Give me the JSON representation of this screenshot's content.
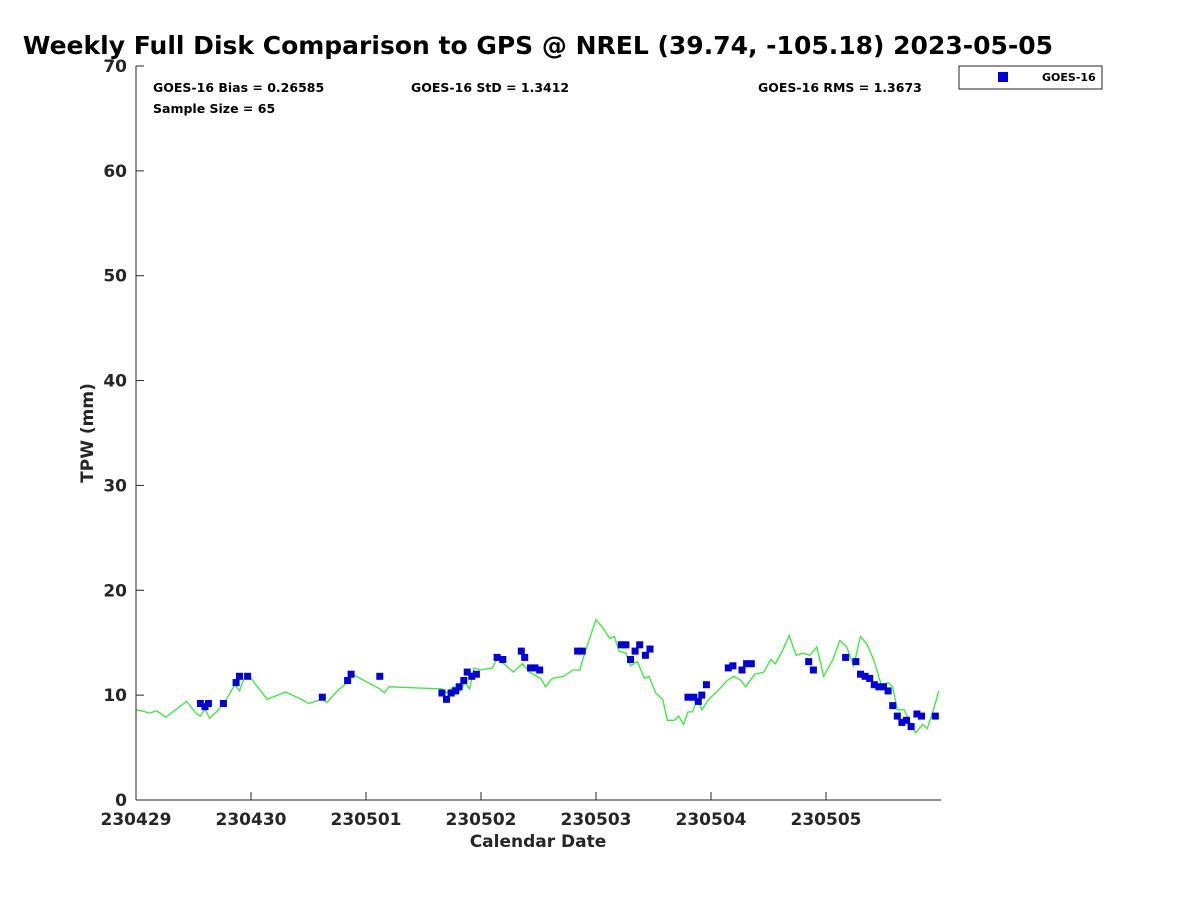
{
  "chart_data": {
    "type": "scatter",
    "title": "Weekly Full Disk Comparison to GPS @ NREL (39.74, -105.18) 2023-05-05",
    "xlabel": "Calendar Date",
    "ylabel": "TPW (mm)",
    "xlim": [
      0,
      7
    ],
    "ylim": [
      0,
      70
    ],
    "x_ticks": [
      {
        "pos": 0,
        "label": "230429"
      },
      {
        "pos": 1,
        "label": "230430"
      },
      {
        "pos": 2,
        "label": "230501"
      },
      {
        "pos": 3,
        "label": "230502"
      },
      {
        "pos": 4,
        "label": "230503"
      },
      {
        "pos": 5,
        "label": "230504"
      },
      {
        "pos": 6,
        "label": "230505"
      }
    ],
    "y_ticks": [
      0,
      10,
      20,
      30,
      40,
      50,
      60,
      70
    ],
    "grid": false,
    "legend": {
      "position": "top-right, outside plot",
      "entries": [
        "GOES-16"
      ]
    },
    "stats": {
      "bias": "GOES-16 Bias = 0.26585",
      "std": "GOES-16 StD = 1.3412",
      "rms": "GOES-16 RMS = 1.3673",
      "sample": "Sample Size = 65"
    },
    "colors": {
      "goes16": "#0000dd",
      "gps": "#33ee33"
    },
    "series": [
      {
        "name": "GOES-16",
        "marker": "square",
        "points": [
          [
            0.56,
            9.2
          ],
          [
            0.6,
            8.9
          ],
          [
            0.63,
            9.2
          ],
          [
            0.76,
            9.2
          ],
          [
            0.87,
            11.2
          ],
          [
            0.9,
            11.8
          ],
          [
            0.97,
            11.8
          ],
          [
            1.62,
            9.8
          ],
          [
            1.84,
            11.4
          ],
          [
            1.87,
            12.0
          ],
          [
            2.12,
            11.8
          ],
          [
            2.66,
            10.2
          ],
          [
            2.7,
            9.6
          ],
          [
            2.74,
            10.2
          ],
          [
            2.78,
            10.4
          ],
          [
            2.81,
            10.8
          ],
          [
            2.85,
            11.4
          ],
          [
            2.88,
            12.2
          ],
          [
            2.92,
            11.8
          ],
          [
            2.96,
            12.0
          ],
          [
            3.14,
            13.6
          ],
          [
            3.19,
            13.4
          ],
          [
            3.35,
            14.2
          ],
          [
            3.38,
            13.6
          ],
          [
            3.43,
            12.6
          ],
          [
            3.47,
            12.6
          ],
          [
            3.51,
            12.4
          ],
          [
            3.84,
            14.2
          ],
          [
            3.88,
            14.2
          ],
          [
            4.22,
            14.8
          ],
          [
            4.26,
            14.8
          ],
          [
            4.3,
            13.4
          ],
          [
            4.34,
            14.2
          ],
          [
            4.38,
            14.8
          ],
          [
            4.43,
            13.8
          ],
          [
            4.47,
            14.4
          ],
          [
            4.8,
            9.8
          ],
          [
            4.85,
            9.8
          ],
          [
            4.89,
            9.4
          ],
          [
            4.92,
            10.0
          ],
          [
            4.96,
            11.0
          ],
          [
            5.15,
            12.6
          ],
          [
            5.19,
            12.8
          ],
          [
            5.27,
            12.4
          ],
          [
            5.31,
            13.0
          ],
          [
            5.35,
            13.0
          ],
          [
            5.85,
            13.2
          ],
          [
            5.89,
            12.4
          ],
          [
            6.17,
            13.6
          ],
          [
            6.26,
            13.2
          ],
          [
            6.3,
            12.0
          ],
          [
            6.34,
            11.8
          ],
          [
            6.38,
            11.6
          ],
          [
            6.42,
            11.0
          ],
          [
            6.46,
            10.8
          ],
          [
            6.5,
            10.8
          ],
          [
            6.54,
            10.4
          ],
          [
            6.58,
            9.0
          ],
          [
            6.62,
            8.0
          ],
          [
            6.66,
            7.4
          ],
          [
            6.7,
            7.6
          ],
          [
            6.74,
            7.0
          ],
          [
            6.79,
            8.2
          ],
          [
            6.83,
            8.0
          ],
          [
            6.95,
            8.0
          ]
        ]
      },
      {
        "name": "GPS",
        "marker": "line",
        "points": [
          [
            0.0,
            8.6
          ],
          [
            0.12,
            8.3
          ],
          [
            0.18,
            8.5
          ],
          [
            0.26,
            7.9
          ],
          [
            0.32,
            8.4
          ],
          [
            0.44,
            9.4
          ],
          [
            0.52,
            8.3
          ],
          [
            0.56,
            8.0
          ],
          [
            0.6,
            8.7
          ],
          [
            0.64,
            7.8
          ],
          [
            0.7,
            8.4
          ],
          [
            0.78,
            9.5
          ],
          [
            0.86,
            11.0
          ],
          [
            0.9,
            10.4
          ],
          [
            0.94,
            11.6
          ],
          [
            1.0,
            11.6
          ],
          [
            1.14,
            9.6
          ],
          [
            1.3,
            10.3
          ],
          [
            1.44,
            9.6
          ],
          [
            1.5,
            9.2
          ],
          [
            1.62,
            9.6
          ],
          [
            1.66,
            9.3
          ],
          [
            1.76,
            10.5
          ],
          [
            1.84,
            11.2
          ],
          [
            1.88,
            12.0
          ],
          [
            2.12,
            10.6
          ],
          [
            2.16,
            10.2
          ],
          [
            2.2,
            10.8
          ],
          [
            2.66,
            10.6
          ],
          [
            2.7,
            10.2
          ],
          [
            2.76,
            10.8
          ],
          [
            2.82,
            10.4
          ],
          [
            2.86,
            11.2
          ],
          [
            2.9,
            10.6
          ],
          [
            2.94,
            12.6
          ],
          [
            3.0,
            12.4
          ],
          [
            3.1,
            12.6
          ],
          [
            3.14,
            13.5
          ],
          [
            3.22,
            12.8
          ],
          [
            3.28,
            12.2
          ],
          [
            3.36,
            13.0
          ],
          [
            3.42,
            12.2
          ],
          [
            3.52,
            11.6
          ],
          [
            3.56,
            10.8
          ],
          [
            3.62,
            11.6
          ],
          [
            3.72,
            11.8
          ],
          [
            3.8,
            12.4
          ],
          [
            3.86,
            12.4
          ],
          [
            3.88,
            13.2
          ],
          [
            3.92,
            14.6
          ],
          [
            4.0,
            17.2
          ],
          [
            4.06,
            16.4
          ],
          [
            4.12,
            15.4
          ],
          [
            4.16,
            15.6
          ],
          [
            4.2,
            14.2
          ],
          [
            4.26,
            14.0
          ],
          [
            4.3,
            12.8
          ],
          [
            4.36,
            13.2
          ],
          [
            4.42,
            11.6
          ],
          [
            4.46,
            11.8
          ],
          [
            4.52,
            10.2
          ],
          [
            4.58,
            9.6
          ],
          [
            4.62,
            7.6
          ],
          [
            4.68,
            7.6
          ],
          [
            4.72,
            8.0
          ],
          [
            4.76,
            7.2
          ],
          [
            4.8,
            8.4
          ],
          [
            4.84,
            8.4
          ],
          [
            4.88,
            9.6
          ],
          [
            4.92,
            8.6
          ],
          [
            4.98,
            9.6
          ],
          [
            5.06,
            10.4
          ],
          [
            5.14,
            11.4
          ],
          [
            5.2,
            11.8
          ],
          [
            5.26,
            11.4
          ],
          [
            5.3,
            10.8
          ],
          [
            5.38,
            12.0
          ],
          [
            5.46,
            12.2
          ],
          [
            5.52,
            13.4
          ],
          [
            5.56,
            13.0
          ],
          [
            5.62,
            14.2
          ],
          [
            5.68,
            15.7
          ],
          [
            5.74,
            13.8
          ],
          [
            5.8,
            14.0
          ],
          [
            5.86,
            13.8
          ],
          [
            5.92,
            14.6
          ],
          [
            5.98,
            11.8
          ],
          [
            6.06,
            13.4
          ],
          [
            6.12,
            15.2
          ],
          [
            6.18,
            14.6
          ],
          [
            6.24,
            12.8
          ],
          [
            6.3,
            15.6
          ],
          [
            6.36,
            14.8
          ],
          [
            6.42,
            13.2
          ],
          [
            6.48,
            11.0
          ],
          [
            6.54,
            11.2
          ],
          [
            6.58,
            10.8
          ],
          [
            6.62,
            8.6
          ],
          [
            6.68,
            8.6
          ],
          [
            6.72,
            7.6
          ],
          [
            6.78,
            6.4
          ],
          [
            6.84,
            7.2
          ],
          [
            6.88,
            6.8
          ],
          [
            6.94,
            8.8
          ],
          [
            6.98,
            10.4
          ]
        ]
      }
    ]
  }
}
